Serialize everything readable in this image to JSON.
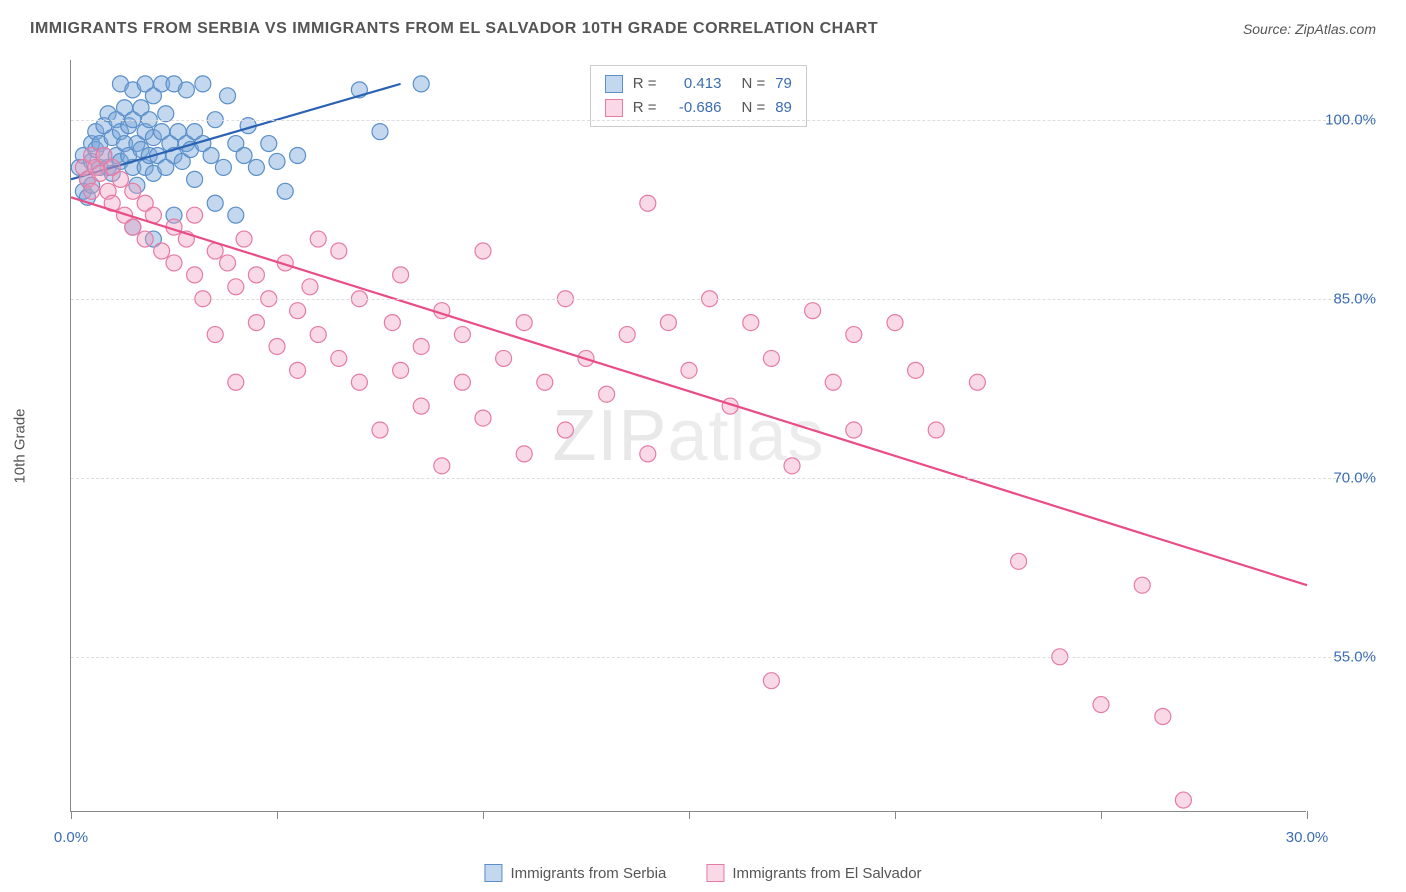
{
  "title": "IMMIGRANTS FROM SERBIA VS IMMIGRANTS FROM EL SALVADOR 10TH GRADE CORRELATION CHART",
  "source": "Source: ZipAtlas.com",
  "watermark_a": "ZIP",
  "watermark_b": "atlas",
  "y_axis_label": "10th Grade",
  "chart": {
    "type": "scatter",
    "background_color": "#ffffff",
    "grid_color": "#dddddd",
    "axis_color": "#888888",
    "text_color": "#555555",
    "value_color": "#3b6db0",
    "xlim": [
      0,
      30
    ],
    "ylim": [
      42,
      105
    ],
    "x_ticks": [
      0,
      5,
      10,
      15,
      20,
      25,
      30
    ],
    "x_tick_labels": {
      "0": "0.0%",
      "30": "30.0%"
    },
    "y_ticks": [
      55,
      70,
      85,
      100
    ],
    "y_tick_labels": {
      "55": "55.0%",
      "70": "70.0%",
      "85": "85.0%",
      "100": "100.0%"
    },
    "marker_radius": 8,
    "marker_stroke_width": 1.2,
    "line_width": 2.2,
    "series": [
      {
        "name": "Immigrants from Serbia",
        "fill": "rgba(122,166,218,0.45)",
        "stroke": "#5a8fc9",
        "line_color": "#2a62b3",
        "r_label": "R =",
        "r_value": "0.413",
        "n_label": "N =",
        "n_value": "79",
        "trend": {
          "x1": 0,
          "y1": 95,
          "x2": 8,
          "y2": 103
        },
        "points": [
          [
            0.2,
            96
          ],
          [
            0.3,
            97
          ],
          [
            0.4,
            95
          ],
          [
            0.5,
            98
          ],
          [
            0.5,
            96.5
          ],
          [
            0.6,
            97.5
          ],
          [
            0.6,
            99
          ],
          [
            0.7,
            96
          ],
          [
            0.7,
            98
          ],
          [
            0.8,
            97
          ],
          [
            0.8,
            99.5
          ],
          [
            0.9,
            96
          ],
          [
            0.9,
            100.5
          ],
          [
            1.0,
            95.5
          ],
          [
            1.0,
            98.5
          ],
          [
            1.1,
            97
          ],
          [
            1.1,
            100
          ],
          [
            1.2,
            96.5
          ],
          [
            1.2,
            99
          ],
          [
            1.2,
            103
          ],
          [
            1.3,
            98
          ],
          [
            1.3,
            101
          ],
          [
            1.4,
            97
          ],
          [
            1.4,
            99.5
          ],
          [
            1.5,
            96
          ],
          [
            1.5,
            100
          ],
          [
            1.5,
            102.5
          ],
          [
            1.6,
            98
          ],
          [
            1.6,
            94.5
          ],
          [
            1.7,
            97.5
          ],
          [
            1.7,
            101
          ],
          [
            1.8,
            96
          ],
          [
            1.8,
            99
          ],
          [
            1.8,
            103
          ],
          [
            1.9,
            97
          ],
          [
            1.9,
            100
          ],
          [
            2.0,
            95.5
          ],
          [
            2.0,
            98.5
          ],
          [
            2.0,
            102
          ],
          [
            2.1,
            97
          ],
          [
            2.2,
            99
          ],
          [
            2.2,
            103
          ],
          [
            2.3,
            96
          ],
          [
            2.3,
            100.5
          ],
          [
            2.4,
            98
          ],
          [
            2.5,
            97
          ],
          [
            2.5,
            103
          ],
          [
            2.6,
            99
          ],
          [
            2.7,
            96.5
          ],
          [
            2.8,
            98
          ],
          [
            2.8,
            102.5
          ],
          [
            2.9,
            97.5
          ],
          [
            3.0,
            99
          ],
          [
            3.0,
            95
          ],
          [
            3.2,
            103
          ],
          [
            3.2,
            98
          ],
          [
            3.4,
            97
          ],
          [
            3.5,
            100
          ],
          [
            3.5,
            93
          ],
          [
            3.7,
            96
          ],
          [
            3.8,
            102
          ],
          [
            4.0,
            98
          ],
          [
            4.0,
            92
          ],
          [
            4.2,
            97
          ],
          [
            4.3,
            99.5
          ],
          [
            4.5,
            96
          ],
          [
            4.8,
            98
          ],
          [
            5.0,
            96.5
          ],
          [
            5.2,
            94
          ],
          [
            5.5,
            97
          ],
          [
            1.5,
            91
          ],
          [
            2.0,
            90
          ],
          [
            2.5,
            92
          ],
          [
            0.3,
            94
          ],
          [
            0.4,
            93.5
          ],
          [
            0.5,
            94.5
          ],
          [
            7.0,
            102.5
          ],
          [
            7.5,
            99
          ],
          [
            8.5,
            103
          ]
        ]
      },
      {
        "name": "Immigrants from El Salvador",
        "fill": "rgba(240,160,190,0.4)",
        "stroke": "#e67ba5",
        "line_color": "#e94c86",
        "r_label": "R =",
        "r_value": "-0.686",
        "n_label": "N =",
        "n_value": "89",
        "trend": {
          "x1": 0,
          "y1": 93.5,
          "x2": 30,
          "y2": 61
        },
        "points": [
          [
            0.3,
            96
          ],
          [
            0.4,
            95
          ],
          [
            0.5,
            97
          ],
          [
            0.5,
            94
          ],
          [
            0.6,
            96
          ],
          [
            0.7,
            95.5
          ],
          [
            0.8,
            97
          ],
          [
            0.9,
            94
          ],
          [
            1.0,
            96
          ],
          [
            1.0,
            93
          ],
          [
            1.2,
            95
          ],
          [
            1.3,
            92
          ],
          [
            1.5,
            94
          ],
          [
            1.5,
            91
          ],
          [
            1.8,
            93
          ],
          [
            1.8,
            90
          ],
          [
            2.0,
            92
          ],
          [
            2.2,
            89
          ],
          [
            2.5,
            91
          ],
          [
            2.5,
            88
          ],
          [
            2.8,
            90
          ],
          [
            3.0,
            87
          ],
          [
            3.0,
            92
          ],
          [
            3.2,
            85
          ],
          [
            3.5,
            89
          ],
          [
            3.5,
            82
          ],
          [
            3.8,
            88
          ],
          [
            4.0,
            86
          ],
          [
            4.0,
            78
          ],
          [
            4.2,
            90
          ],
          [
            4.5,
            87
          ],
          [
            4.5,
            83
          ],
          [
            4.8,
            85
          ],
          [
            5.0,
            81
          ],
          [
            5.2,
            88
          ],
          [
            5.5,
            84
          ],
          [
            5.5,
            79
          ],
          [
            5.8,
            86
          ],
          [
            6.0,
            82
          ],
          [
            6.0,
            90
          ],
          [
            6.5,
            89
          ],
          [
            6.5,
            80
          ],
          [
            7.0,
            78
          ],
          [
            7.0,
            85
          ],
          [
            7.5,
            74
          ],
          [
            7.8,
            83
          ],
          [
            8.0,
            79
          ],
          [
            8.0,
            87
          ],
          [
            8.5,
            81
          ],
          [
            8.5,
            76
          ],
          [
            9.0,
            84
          ],
          [
            9.0,
            71
          ],
          [
            9.5,
            82
          ],
          [
            9.5,
            78
          ],
          [
            10.0,
            89
          ],
          [
            10.0,
            75
          ],
          [
            10.5,
            80
          ],
          [
            11.0,
            83
          ],
          [
            11.0,
            72
          ],
          [
            11.5,
            78
          ],
          [
            12.0,
            85
          ],
          [
            12.0,
            74
          ],
          [
            12.5,
            80
          ],
          [
            13.0,
            77
          ],
          [
            13.5,
            82
          ],
          [
            14.0,
            93
          ],
          [
            14.0,
            72
          ],
          [
            14.5,
            83
          ],
          [
            15.0,
            79
          ],
          [
            15.5,
            85
          ],
          [
            16.0,
            76
          ],
          [
            16.5,
            83
          ],
          [
            17.0,
            80
          ],
          [
            17.5,
            71
          ],
          [
            18.0,
            84
          ],
          [
            18.5,
            78
          ],
          [
            19.0,
            82
          ],
          [
            19.0,
            74
          ],
          [
            20.0,
            83
          ],
          [
            20.5,
            79
          ],
          [
            21.0,
            74
          ],
          [
            22.0,
            78
          ],
          [
            23.0,
            63
          ],
          [
            24.0,
            55
          ],
          [
            25.0,
            51
          ],
          [
            26.0,
            61
          ],
          [
            26.5,
            50
          ],
          [
            27.0,
            43
          ],
          [
            17.0,
            53
          ]
        ]
      }
    ]
  },
  "legend_bottom": [
    {
      "label": "Immigrants from Serbia",
      "fill": "rgba(122,166,218,0.45)",
      "stroke": "#5a8fc9"
    },
    {
      "label": "Immigrants from El Salvador",
      "fill": "rgba(240,160,190,0.4)",
      "stroke": "#e67ba5"
    }
  ]
}
